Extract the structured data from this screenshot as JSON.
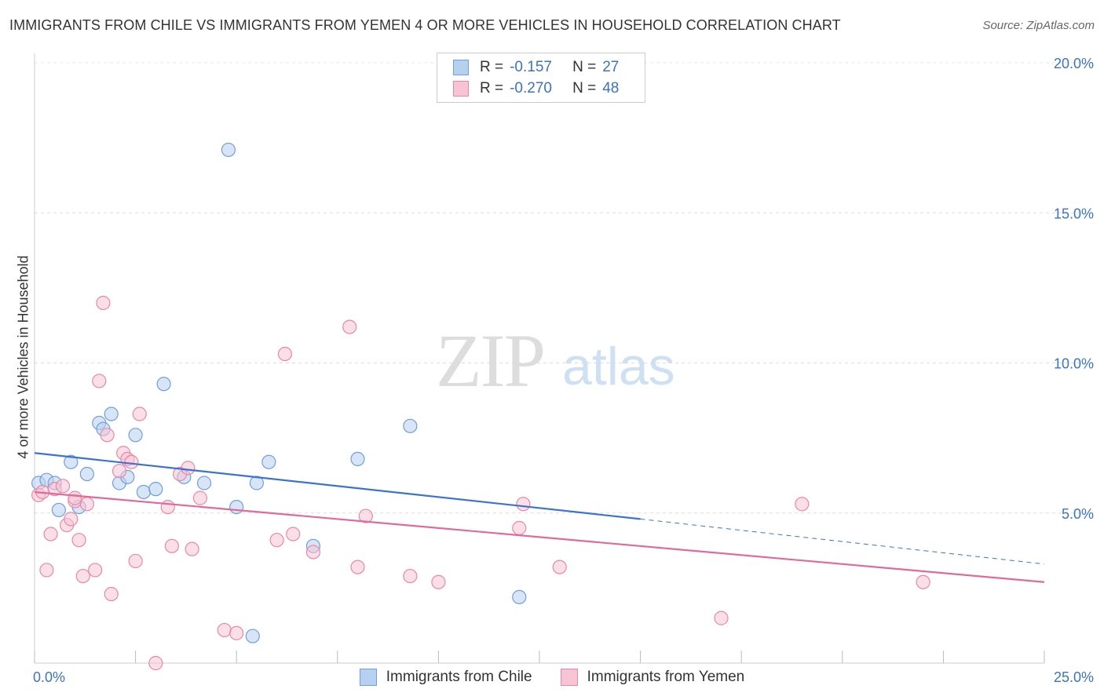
{
  "title": "IMMIGRANTS FROM CHILE VS IMMIGRANTS FROM YEMEN 4 OR MORE VEHICLES IN HOUSEHOLD CORRELATION CHART",
  "source": "Source: ZipAtlas.com",
  "watermark": {
    "zip": "ZIP",
    "atlas": "atlas"
  },
  "legend": {
    "r_label": "R =",
    "n_label": "N =",
    "rows": [
      {
        "r": "-0.157",
        "n": "27",
        "fill": "#b8d0f0",
        "stroke": "#6f9fdc"
      },
      {
        "r": "-0.270",
        "n": "48",
        "fill": "#f8c4d4",
        "stroke": "#e888a8"
      }
    ]
  },
  "bottom_legend": [
    "Immigrants from Chile",
    "Immigrants from Yemen"
  ],
  "chart_data": {
    "type": "scatter",
    "title": "IMMIGRANTS FROM CHILE VS IMMIGRANTS FROM YEMEN 4 OR MORE VEHICLES IN HOUSEHOLD CORRELATION CHART",
    "ylabel": "4 or more Vehicles in Household",
    "xlabel": "",
    "xlim": [
      0,
      25
    ],
    "ylim": [
      0,
      20
    ],
    "x_tick_labels": [
      "0.0%",
      "25.0%"
    ],
    "y_tick_labels": [
      "5.0%",
      "10.0%",
      "15.0%",
      "20.0%"
    ],
    "y_ticks": [
      5,
      10,
      15,
      20
    ],
    "grid": true,
    "legend_position": "top-center",
    "series": [
      {
        "name": "Immigrants from Chile",
        "color": "#6f9fdc",
        "fill": "#b8d0f0",
        "trend_color": "#3b73d0",
        "trend": {
          "x0": 0,
          "y0": 7.0,
          "x1": 15,
          "y1": 4.8,
          "dash_to_x": 25,
          "dash_to_y": 3.3
        },
        "points": [
          [
            0.1,
            6.0
          ],
          [
            0.3,
            6.1
          ],
          [
            0.5,
            6.0
          ],
          [
            0.6,
            5.1
          ],
          [
            0.9,
            6.7
          ],
          [
            1.1,
            5.2
          ],
          [
            1.3,
            6.3
          ],
          [
            1.6,
            8.0
          ],
          [
            1.7,
            7.8
          ],
          [
            1.9,
            8.3
          ],
          [
            2.1,
            6.0
          ],
          [
            2.3,
            6.2
          ],
          [
            2.5,
            7.6
          ],
          [
            2.7,
            5.7
          ],
          [
            3.0,
            5.8
          ],
          [
            3.2,
            9.3
          ],
          [
            3.7,
            6.2
          ],
          [
            4.2,
            6.0
          ],
          [
            4.8,
            17.1
          ],
          [
            5.0,
            5.2
          ],
          [
            5.5,
            6.0
          ],
          [
            5.8,
            6.7
          ],
          [
            6.9,
            3.9
          ],
          [
            8.0,
            6.8
          ],
          [
            9.3,
            7.9
          ],
          [
            12.0,
            2.2
          ],
          [
            5.4,
            0.9
          ]
        ]
      },
      {
        "name": "Immigrants from Yemen",
        "color": "#e888a8",
        "fill": "#f8c4d4",
        "trend_color": "#e06a98",
        "trend": {
          "x0": 0,
          "y0": 5.7,
          "x1": 25,
          "y1": 2.7
        },
        "points": [
          [
            0.1,
            5.6
          ],
          [
            0.2,
            5.7
          ],
          [
            0.3,
            3.1
          ],
          [
            0.4,
            4.3
          ],
          [
            0.5,
            5.8
          ],
          [
            0.7,
            5.9
          ],
          [
            0.8,
            4.6
          ],
          [
            0.9,
            4.8
          ],
          [
            1.0,
            5.4
          ],
          [
            1.1,
            4.1
          ],
          [
            1.2,
            2.9
          ],
          [
            1.3,
            5.3
          ],
          [
            1.5,
            3.1
          ],
          [
            1.6,
            9.4
          ],
          [
            1.7,
            12.0
          ],
          [
            1.8,
            7.6
          ],
          [
            1.9,
            2.3
          ],
          [
            2.1,
            6.4
          ],
          [
            2.2,
            7.0
          ],
          [
            2.3,
            6.8
          ],
          [
            2.4,
            6.7
          ],
          [
            2.5,
            3.4
          ],
          [
            2.6,
            8.3
          ],
          [
            3.3,
            5.2
          ],
          [
            3.4,
            3.9
          ],
          [
            3.6,
            6.3
          ],
          [
            3.8,
            6.5
          ],
          [
            3.9,
            3.8
          ],
          [
            4.1,
            5.5
          ],
          [
            4.7,
            1.1
          ],
          [
            5.0,
            1.0
          ],
          [
            6.0,
            4.1
          ],
          [
            6.2,
            10.3
          ],
          [
            6.4,
            4.3
          ],
          [
            6.9,
            3.7
          ],
          [
            7.8,
            11.2
          ],
          [
            8.0,
            3.2
          ],
          [
            8.2,
            4.9
          ],
          [
            9.3,
            2.9
          ],
          [
            10.0,
            2.7
          ],
          [
            12.0,
            4.5
          ],
          [
            12.1,
            5.3
          ],
          [
            13.0,
            3.2
          ],
          [
            17.0,
            1.5
          ],
          [
            19.0,
            5.3
          ],
          [
            22.0,
            2.7
          ],
          [
            3.0,
            0.0
          ],
          [
            1.0,
            5.5
          ]
        ]
      }
    ]
  }
}
